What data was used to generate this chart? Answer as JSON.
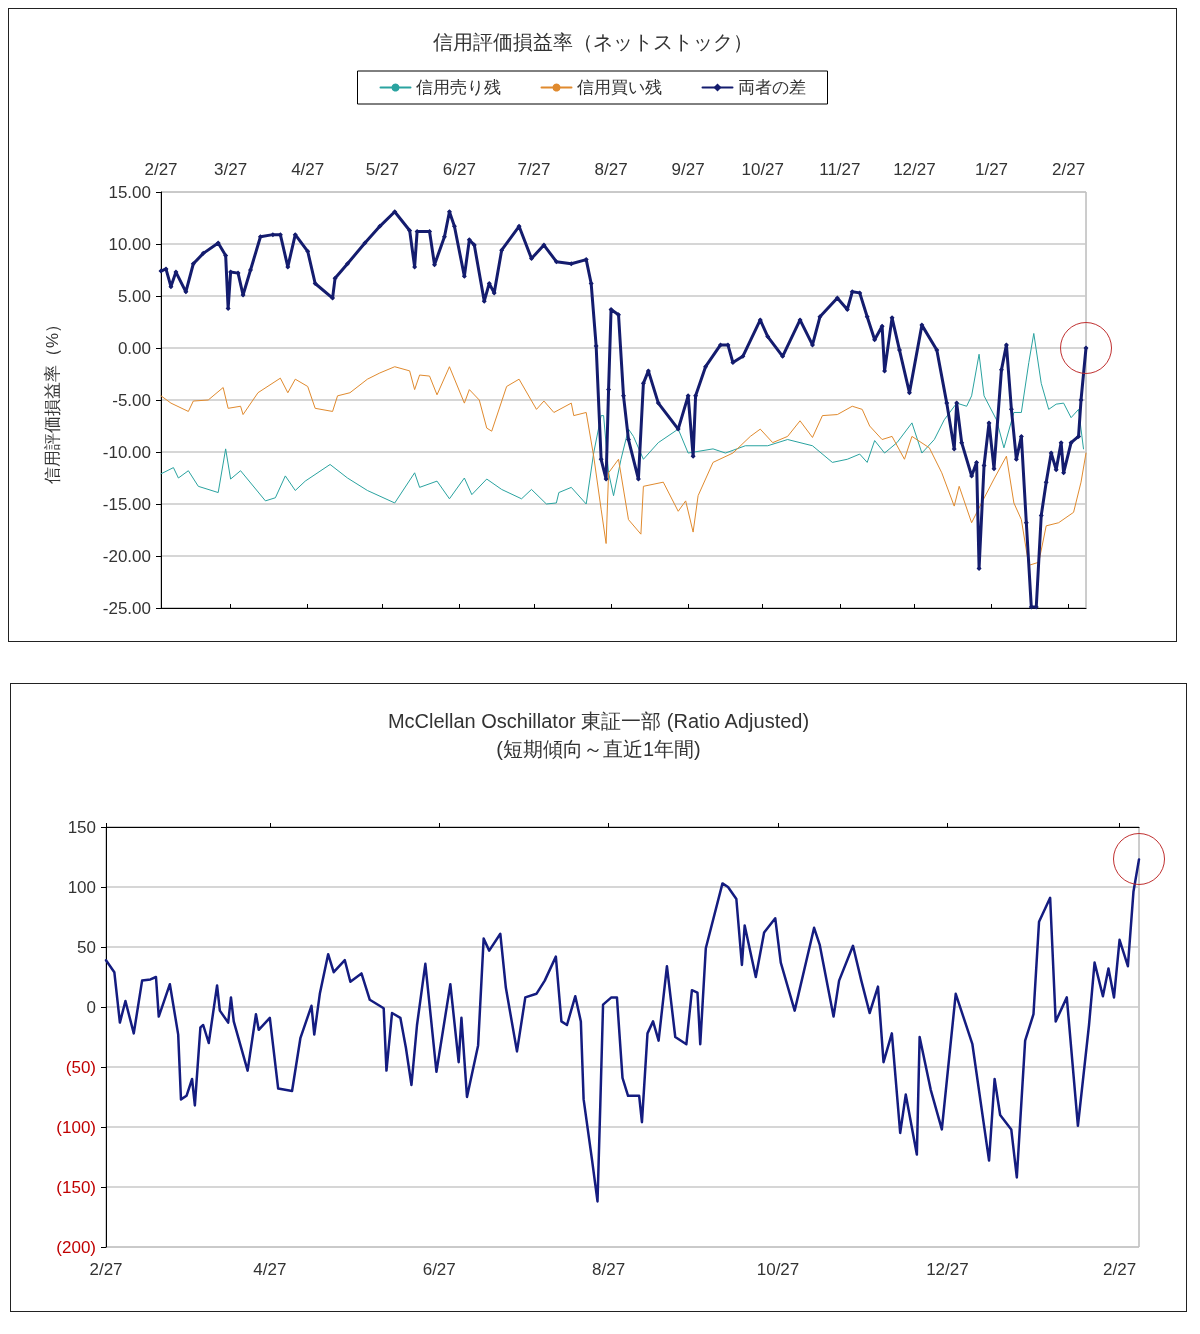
{
  "chart_data": [
    {
      "type": "line",
      "title": "信用評価損益率（ネットストック）",
      "ylabel": "信用評価損益率（%）",
      "ylim": [
        -25,
        15
      ],
      "categories": [
        "2/27",
        null,
        null,
        null,
        null,
        null,
        null,
        null,
        null,
        null,
        null,
        null,
        null,
        null,
        null,
        null,
        null,
        null,
        null,
        null,
        null,
        null,
        null,
        null,
        null,
        null,
        null,
        null,
        "3/27",
        null,
        null,
        null,
        null,
        null,
        null,
        null,
        null,
        null,
        null,
        null,
        null,
        null,
        null,
        null,
        null,
        null,
        null,
        null,
        null,
        null,
        null,
        null,
        null,
        null,
        null,
        null,
        null,
        null,
        null,
        "4/27",
        null,
        null,
        null,
        null,
        null,
        null,
        null,
        null,
        null,
        null,
        null,
        null,
        null,
        null,
        null,
        null,
        null,
        null,
        null,
        null,
        null,
        null,
        null,
        null,
        null,
        null,
        null,
        null,
        null,
        "5/27",
        null,
        null,
        null,
        null,
        null,
        null,
        null,
        null,
        null,
        null,
        null,
        null,
        null,
        null,
        null,
        null,
        null,
        null,
        null,
        null,
        null,
        null,
        null,
        null,
        null,
        null,
        null,
        null,
        null,
        null,
        "6/27",
        null,
        null,
        null,
        null,
        null,
        null,
        null,
        null,
        null,
        null,
        null,
        null,
        null,
        null,
        null,
        null,
        null,
        null,
        null,
        null,
        null,
        null,
        null,
        null,
        null,
        null,
        null,
        null,
        null,
        "7/27",
        null,
        null,
        null,
        null,
        null,
        null,
        null,
        null,
        null,
        null,
        null,
        null,
        null,
        null,
        null,
        null,
        null,
        null,
        null,
        null,
        null,
        null,
        null,
        null,
        null,
        null,
        null,
        null,
        null,
        null,
        "8/27",
        null,
        null,
        null,
        null,
        null,
        null,
        null,
        null,
        null,
        null,
        null,
        null,
        null,
        null,
        null,
        null,
        null,
        null,
        null,
        null,
        null,
        null,
        null,
        null,
        null,
        null,
        null,
        null,
        null,
        null,
        "9/27",
        null,
        null,
        null,
        null,
        null,
        null,
        null,
        null,
        null,
        null,
        null,
        null,
        null,
        null,
        null,
        null,
        null,
        null,
        null,
        null,
        null,
        null,
        null,
        null,
        null,
        null,
        null,
        null,
        null,
        "10/27",
        null,
        null,
        null,
        null,
        null,
        null,
        null,
        null,
        null,
        null,
        null,
        null,
        null,
        null,
        null,
        null,
        null,
        null,
        null,
        null,
        null,
        null,
        null,
        null,
        null,
        null,
        null,
        null,
        null,
        null,
        "11/27",
        null,
        null,
        null,
        null,
        null,
        null,
        null,
        null,
        null,
        null,
        null,
        null,
        null,
        null,
        null,
        null,
        null,
        null,
        null,
        null,
        null,
        null,
        null,
        null,
        null,
        null,
        null,
        null,
        null,
        "12/27",
        null,
        null,
        null,
        null,
        null,
        null,
        null,
        null,
        null,
        null,
        null,
        null,
        null,
        null,
        null,
        null,
        null,
        null,
        null,
        null,
        null,
        null,
        null,
        null,
        null,
        null,
        null,
        null,
        null,
        null,
        "1/27",
        null,
        null,
        null,
        null,
        null,
        null,
        null,
        null,
        null,
        null,
        null,
        null,
        null,
        null,
        null,
        null,
        null,
        null,
        null,
        null,
        null,
        null,
        null,
        null,
        null,
        null,
        null,
        null,
        null,
        null,
        "2/27",
        null,
        null,
        null,
        null,
        null,
        null,
        null
      ],
      "yticks": [
        {
          "value": -25,
          "label": "-25.00"
        },
        {
          "value": -20,
          "label": "-20.00"
        },
        {
          "value": -15,
          "label": "-15.00"
        },
        {
          "value": -10,
          "label": "-10.00"
        },
        {
          "value": -5,
          "label": "-5.00"
        },
        {
          "value": 0,
          "label": "0.00"
        },
        {
          "value": 5,
          "label": "5.00"
        },
        {
          "value": 10,
          "label": "10.00"
        },
        {
          "value": 15,
          "label": "15.00"
        }
      ],
      "grid": "y",
      "legend": "top",
      "series": [
        {
          "name": "信用売り残",
          "color": "#2aa3a0",
          "values": [
            -12.1,
            null,
            null,
            null,
            null,
            -11.5,
            null,
            -12.5,
            null,
            null,
            null,
            -11.8,
            null,
            null,
            null,
            -13.3,
            null,
            null,
            null,
            null,
            null,
            null,
            null,
            -13.9,
            null,
            null,
            -9.7,
            null,
            -12.6,
            null,
            null,
            null,
            -11.8,
            null,
            null,
            null,
            null,
            null,
            null,
            null,
            null,
            null,
            -14.7,
            null,
            null,
            null,
            -14.4,
            null,
            null,
            null,
            -12.3,
            null,
            null,
            null,
            -13.7,
            null,
            null,
            null,
            -12.8,
            null,
            null,
            null,
            null,
            null,
            null,
            null,
            null,
            null,
            -11.2,
            null,
            null,
            null,
            null,
            null,
            null,
            -12.5,
            null,
            null,
            null,
            null,
            null,
            null,
            null,
            -13.7,
            null,
            null,
            null,
            null,
            null,
            null,
            null,
            null,
            null,
            null,
            -14.9,
            null,
            null,
            null,
            null,
            null,
            null,
            null,
            -12.0,
            null,
            -13.4,
            null,
            null,
            null,
            null,
            null,
            null,
            -12.8,
            null,
            null,
            null,
            null,
            -14.5,
            null,
            null,
            null,
            null,
            null,
            -12.5,
            null,
            null,
            -14.1,
            null,
            null,
            null,
            null,
            null,
            -12.6,
            null,
            null,
            null,
            null,
            null,
            -13.6,
            null,
            null,
            null,
            null,
            null,
            null,
            null,
            -14.5,
            null,
            null,
            null,
            -13.6,
            null,
            null,
            null,
            null,
            null,
            -15.0,
            null,
            null,
            null,
            -14.9,
            -13.9,
            null,
            null,
            null,
            null,
            -13.4,
            null,
            null,
            null,
            null,
            null,
            -15.0,
            null,
            null,
            -10.1,
            null,
            null,
            -6.5,
            -6.5,
            null,
            -12.0,
            null,
            -14.2,
            null,
            null,
            -10.7,
            null,
            null,
            -7.8,
            null,
            -8.5,
            null,
            null,
            null,
            -10.7,
            null,
            null,
            null,
            null,
            null,
            -9.1,
            null,
            null,
            null,
            null,
            null,
            null,
            null,
            -7.8,
            null,
            null,
            null,
            -10.1,
            null,
            null,
            null,
            null,
            null,
            null,
            null,
            null,
            null,
            -9.7,
            null,
            null,
            null,
            null,
            -10.1,
            null,
            null,
            null,
            null,
            null,
            null,
            null,
            -9.4,
            null,
            null,
            null,
            null,
            null,
            null,
            null,
            null,
            -9.4,
            null,
            null,
            null,
            null,
            null,
            null,
            null,
            -8.8,
            null,
            null,
            null,
            null,
            null,
            null,
            null,
            null,
            null,
            -9.4,
            null,
            null,
            null,
            null,
            null,
            null,
            null,
            -11.0,
            null,
            null,
            null,
            null,
            null,
            -10.7,
            null,
            null,
            null,
            null,
            -10.2,
            null,
            null,
            -11.0,
            null,
            null,
            -8.9,
            null,
            null,
            null,
            -10.1,
            null,
            null,
            null,
            null,
            -9.1,
            null,
            null,
            null,
            null,
            null,
            -7.2,
            null,
            null,
            null,
            -10.1,
            null,
            null,
            null,
            null,
            -8.8,
            null,
            null,
            null,
            -6.9,
            null,
            null,
            null,
            null,
            -5.3,
            null,
            null,
            null,
            -5.6,
            null,
            -4.6,
            null,
            null,
            -0.6,
            null,
            -4.6,
            null,
            null,
            null,
            null,
            -6.9,
            null,
            null,
            -9.6,
            null,
            null,
            null,
            -6.2,
            null,
            null,
            -6.2,
            null,
            null,
            -1.4,
            null,
            1.4,
            null,
            null,
            -3.4,
            null,
            null,
            -5.9,
            null,
            null,
            -5.4,
            null,
            null,
            -5.3,
            null,
            null,
            -6.7,
            null,
            null,
            -5.9,
            null,
            -9.7,
            null
          ]
        },
        {
          "name": "信用買い残",
          "color": "#e08a2e",
          "values": [
            -4.6,
            null,
            null,
            null,
            -5.3,
            null,
            null,
            null,
            null,
            null,
            null,
            -6.1,
            null,
            -5.1,
            null,
            null,
            null,
            null,
            null,
            -5.0,
            null,
            null,
            null,
            null,
            null,
            -3.8,
            null,
            -5.8,
            null,
            null,
            null,
            null,
            -5.6,
            -6.4,
            null,
            null,
            null,
            null,
            null,
            -4.3,
            null,
            null,
            null,
            null,
            null,
            null,
            null,
            null,
            -2.9,
            null,
            null,
            -4.3,
            null,
            null,
            -3.0,
            null,
            null,
            null,
            null,
            -3.7,
            null,
            null,
            -5.8,
            null,
            null,
            null,
            null,
            null,
            null,
            -6.1,
            null,
            -4.6,
            null,
            null,
            null,
            null,
            -4.3,
            null,
            null,
            null,
            null,
            null,
            null,
            -3.0,
            null,
            null,
            null,
            null,
            -2.4,
            null,
            null,
            null,
            null,
            null,
            -1.8,
            null,
            null,
            null,
            null,
            null,
            -2.2,
            null,
            -4.0,
            null,
            -2.6,
            null,
            null,
            null,
            -2.7,
            null,
            null,
            -4.5,
            null,
            null,
            null,
            null,
            -1.8,
            null,
            null,
            null,
            null,
            null,
            -5.3,
            null,
            -4.0,
            null,
            null,
            null,
            -5.0,
            null,
            null,
            -7.7,
            null,
            -8.0,
            null,
            null,
            null,
            null,
            null,
            -3.7,
            null,
            null,
            null,
            null,
            -3.0,
            null,
            null,
            null,
            null,
            null,
            null,
            -5.9,
            null,
            null,
            -5.1,
            null,
            null,
            null,
            -6.2,
            null,
            null,
            null,
            null,
            null,
            null,
            -5.3,
            -6.5,
            null,
            null,
            null,
            null,
            -6.2,
            null,
            null,
            -10.4,
            null,
            null,
            -15.5,
            null,
            -18.8,
            -12.0,
            null,
            null,
            null,
            -10.7,
            null,
            null,
            null,
            -16.5,
            null,
            null,
            null,
            null,
            -17.9,
            -13.3,
            null,
            null,
            null,
            null,
            null,
            null,
            null,
            -12.9,
            null,
            null,
            null,
            null,
            null,
            -15.7,
            null,
            null,
            -14.7,
            null,
            null,
            -17.7,
            null,
            -14.2,
            null,
            null,
            null,
            null,
            null,
            -11.0,
            null,
            null,
            null,
            null,
            null,
            null,
            null,
            -10.1,
            null,
            null,
            null,
            null,
            null,
            null,
            -8.5,
            null,
            null,
            null,
            -7.8,
            null,
            null,
            null,
            null,
            -9.1,
            null,
            null,
            null,
            null,
            null,
            -8.5,
            null,
            null,
            null,
            null,
            -7.0,
            null,
            null,
            null,
            null,
            -8.6,
            null,
            null,
            null,
            -6.5,
            null,
            null,
            null,
            null,
            null,
            -6.4,
            null,
            null,
            null,
            null,
            null,
            -5.6,
            null,
            null,
            null,
            -5.9,
            null,
            null,
            -7.5,
            null,
            null,
            null,
            null,
            -8.8,
            null,
            null,
            null,
            -8.5,
            null,
            null,
            null,
            null,
            -10.7,
            null,
            null,
            -8.5,
            null,
            null,
            null,
            null,
            null,
            null,
            -9.6,
            null,
            null,
            null,
            null,
            -12.0,
            null,
            null,
            null,
            null,
            -15.2,
            null,
            -13.3,
            null,
            null,
            null,
            null,
            -16.8,
            null,
            null,
            null,
            -14.9,
            null,
            null,
            null,
            null,
            -12.6,
            null,
            null,
            null,
            null,
            -10.4,
            null,
            null,
            -14.9,
            null,
            null,
            -16.5,
            null,
            null,
            -20.9,
            null,
            null,
            null,
            -20.6,
            null,
            null,
            -17.1,
            null,
            null,
            null,
            null,
            -16.8,
            null,
            null,
            null,
            null,
            null,
            -15.8,
            null,
            null,
            -12.9,
            null,
            -10.1
          ]
        },
        {
          "name": "両者の差",
          "color": "#141c6e",
          "marker": "diamond",
          "values": [
            7.4,
            null,
            7.6,
            null,
            5.9,
            null,
            7.3,
            null,
            null,
            null,
            5.4,
            null,
            null,
            8.1,
            null,
            null,
            null,
            9.1,
            null,
            null,
            null,
            null,
            null,
            10.1,
            null,
            null,
            8.9,
            3.8,
            7.3,
            null,
            null,
            7.2,
            null,
            5.1,
            null,
            null,
            7.5,
            null,
            null,
            null,
            10.7,
            null,
            null,
            null,
            null,
            10.9,
            null,
            null,
            10.9,
            null,
            null,
            7.8,
            null,
            null,
            10.9,
            null,
            null,
            null,
            null,
            9.3,
            null,
            null,
            6.2,
            null,
            null,
            null,
            null,
            null,
            null,
            4.8,
            6.7,
            null,
            null,
            null,
            null,
            8.1,
            null,
            null,
            null,
            null,
            null,
            null,
            10.1,
            null,
            null,
            null,
            null,
            null,
            11.7,
            null,
            null,
            null,
            null,
            null,
            13.1,
            null,
            null,
            null,
            null,
            null,
            11.3,
            null,
            7.8,
            11.2,
            null,
            null,
            null,
            null,
            11.2,
            null,
            8.0,
            null,
            null,
            null,
            10.7,
            null,
            13.1,
            null,
            11.7,
            null,
            null,
            null,
            6.9,
            null,
            10.4,
            null,
            9.9,
            null,
            null,
            null,
            4.5,
            null,
            6.2,
            null,
            5.3,
            null,
            null,
            9.4,
            null,
            null,
            null,
            null,
            null,
            null,
            11.7,
            null,
            null,
            null,
            null,
            8.6,
            null,
            null,
            null,
            null,
            9.9,
            null,
            null,
            null,
            null,
            8.3,
            null,
            null,
            null,
            null,
            null,
            8.1,
            null,
            null,
            null,
            null,
            null,
            8.5,
            null,
            6.2,
            null,
            0.2,
            null,
            -10.7,
            null,
            -12.6,
            -4.0,
            3.7,
            null,
            null,
            3.2,
            null,
            -4.6,
            null,
            -8.8,
            null,
            null,
            null,
            -12.6,
            null,
            -3.4,
            null,
            -2.2,
            null,
            null,
            null,
            -5.3,
            null,
            null,
            null,
            null,
            null,
            null,
            null,
            -7.8,
            null,
            null,
            null,
            -4.6,
            null,
            -10.4,
            -4.6,
            null,
            null,
            null,
            -1.8,
            null,
            null,
            null,
            null,
            null,
            0.3,
            null,
            null,
            0.3,
            null,
            -1.4,
            null,
            null,
            null,
            -0.8,
            null,
            null,
            null,
            null,
            null,
            null,
            2.7,
            null,
            null,
            1.1,
            null,
            null,
            null,
            null,
            null,
            -0.8,
            null,
            null,
            null,
            null,
            null,
            null,
            2.7,
            null,
            null,
            null,
            null,
            0.3,
            null,
            null,
            3.0,
            null,
            null,
            null,
            null,
            null,
            null,
            4.8,
            null,
            null,
            null,
            3.7,
            null,
            5.4,
            null,
            null,
            5.3,
            null,
            null,
            3.0,
            null,
            null,
            0.8,
            null,
            null,
            2.1,
            -2.2,
            null,
            null,
            2.9,
            null,
            null,
            -0.2,
            null,
            null,
            null,
            -4.3,
            null,
            null,
            null,
            null,
            2.2,
            null,
            null,
            null,
            null,
            null,
            -0.2,
            null,
            null,
            null,
            -5.3,
            null,
            null,
            -9.7,
            -5.3,
            null,
            -9.1,
            null,
            null,
            null,
            -12.3,
            null,
            -11.0,
            -21.2,
            null,
            -11.3,
            null,
            -7.2,
            null,
            -11.6,
            null,
            null,
            -2.1,
            null,
            0.3,
            null,
            -5.9,
            null,
            -10.7,
            null,
            -8.5,
            null,
            -16.8,
            null,
            -24.9,
            null,
            -24.9,
            null,
            -16.1,
            null,
            -12.9,
            null,
            -10.1,
            null,
            -11.7,
            null,
            -9.1,
            -12.0,
            null,
            null,
            -9.1,
            null,
            null,
            -8.5,
            -5.0,
            null,
            0.0
          ]
        }
      ]
    },
    {
      "type": "line",
      "title": "McClellan Oschillator 東証一部 (Ratio Adjusted)",
      "subtitle": "(短期傾向～直近1年間)",
      "ylim": [
        -200,
        150
      ],
      "categories": [
        "2/27",
        null,
        null,
        null,
        null,
        null,
        null,
        null,
        null,
        null,
        null,
        null,
        null,
        null,
        null,
        null,
        null,
        null,
        null,
        null,
        null,
        null,
        null,
        null,
        null,
        null,
        null,
        null,
        null,
        null,
        null,
        null,
        null,
        null,
        null,
        null,
        null,
        null,
        null,
        null,
        null,
        null,
        null,
        null,
        null,
        null,
        null,
        null,
        null,
        null,
        null,
        null,
        null,
        null,
        null,
        null,
        null,
        null,
        null,
        "4/27",
        null,
        null,
        null,
        null,
        null,
        null,
        null,
        null,
        null,
        null,
        null,
        null,
        null,
        null,
        null,
        null,
        null,
        null,
        null,
        null,
        null,
        null,
        null,
        null,
        null,
        null,
        null,
        null,
        null,
        null,
        null,
        null,
        null,
        null,
        null,
        null,
        null,
        null,
        null,
        null,
        null,
        null,
        null,
        null,
        null,
        null,
        null,
        null,
        null,
        null,
        null,
        null,
        null,
        null,
        null,
        null,
        null,
        null,
        null,
        null,
        "6/27",
        null,
        null,
        null,
        null,
        null,
        null,
        null,
        null,
        null,
        null,
        null,
        null,
        null,
        null,
        null,
        null,
        null,
        null,
        null,
        null,
        null,
        null,
        null,
        null,
        null,
        null,
        null,
        null,
        null,
        null,
        null,
        null,
        null,
        null,
        null,
        null,
        null,
        null,
        null,
        null,
        null,
        null,
        null,
        null,
        null,
        null,
        null,
        null,
        null,
        null,
        null,
        null,
        null,
        null,
        null,
        null,
        null,
        null,
        null,
        null,
        "8/27",
        null,
        null,
        null,
        null,
        null,
        null,
        null,
        null,
        null,
        null,
        null,
        null,
        null,
        null,
        null,
        null,
        null,
        null,
        null,
        null,
        null,
        null,
        null,
        null,
        null,
        null,
        null,
        null,
        null,
        null,
        null,
        null,
        null,
        null,
        null,
        null,
        null,
        null,
        null,
        null,
        null,
        null,
        null,
        null,
        null,
        null,
        null,
        null,
        null,
        null,
        null,
        null,
        null,
        null,
        null,
        null,
        null,
        null,
        null,
        null,
        "10/27",
        null,
        null,
        null,
        null,
        null,
        null,
        null,
        null,
        null,
        null,
        null,
        null,
        null,
        null,
        null,
        null,
        null,
        null,
        null,
        null,
        null,
        null,
        null,
        null,
        null,
        null,
        null,
        null,
        null,
        null,
        null,
        null,
        null,
        null,
        null,
        null,
        null,
        null,
        null,
        null,
        null,
        null,
        null,
        null,
        null,
        null,
        null,
        null,
        null,
        null,
        null,
        null,
        null,
        null,
        null,
        null,
        null,
        null,
        null,
        null,
        "12/27",
        null,
        null,
        null,
        null,
        null,
        null,
        null,
        null,
        null,
        null,
        null,
        null,
        null,
        null,
        null,
        null,
        null,
        null,
        null,
        null,
        null,
        null,
        null,
        null,
        null,
        null,
        null,
        null,
        null,
        null,
        null,
        null,
        null,
        null,
        null,
        null,
        null,
        null,
        null,
        null,
        null,
        null,
        null,
        null,
        null,
        null,
        null,
        null,
        null,
        null,
        null,
        null,
        null,
        null,
        null,
        null,
        null,
        null,
        null,
        null,
        null,
        "2/27",
        null,
        null,
        null,
        null,
        null,
        null,
        null
      ],
      "yticks": [
        {
          "value": -200,
          "label": "(200)"
        },
        {
          "value": -150,
          "label": "(150)"
        },
        {
          "value": -100,
          "label": "(100)"
        },
        {
          "value": -50,
          "label": "(50)"
        },
        0,
        50,
        100,
        150
      ],
      "grid": "y",
      "legend": false,
      "series": [
        {
          "color": "#141c80",
          "values": [
            39,
            null,
            null,
            29,
            null,
            -13,
            null,
            5,
            null,
            null,
            -22,
            null,
            null,
            22,
            null,
            null,
            23,
            null,
            25,
            -8,
            null,
            null,
            null,
            19,
            null,
            null,
            -23,
            -77,
            null,
            -74,
            null,
            -60,
            -82,
            null,
            -17,
            -15,
            null,
            -30,
            null,
            null,
            18,
            -3,
            null,
            null,
            -13,
            8,
            -12,
            null,
            null,
            null,
            null,
            -53,
            null,
            null,
            -6,
            -19,
            null,
            null,
            null,
            -9,
            null,
            null,
            -68,
            null,
            null,
            null,
            null,
            -70,
            null,
            null,
            -26,
            null,
            null,
            null,
            1,
            -23,
            null,
            11,
            null,
            null,
            44,
            null,
            29,
            null,
            null,
            null,
            39,
            null,
            21,
            null,
            null,
            null,
            28,
            null,
            null,
            6,
            null,
            null,
            null,
            null,
            -1,
            -53,
            null,
            -5,
            null,
            null,
            -9,
            null,
            -34,
            null,
            -65,
            null,
            -15,
            null,
            19,
            36,
            null,
            null,
            null,
            -54,
            null,
            null,
            null,
            null,
            19,
            null,
            null,
            -46,
            -9,
            null,
            -75,
            null,
            null,
            null,
            -32,
            null,
            57,
            null,
            47,
            null,
            null,
            null,
            61,
            null,
            16,
            null,
            null,
            null,
            -37,
            null,
            null,
            8,
            null,
            null,
            null,
            11,
            null,
            null,
            22,
            null,
            null,
            null,
            42,
            null,
            -12,
            null,
            -15,
            null,
            null,
            9,
            null,
            -12,
            -77,
            null,
            null,
            -127,
            null,
            -162,
            -82,
            2,
            null,
            null,
            8,
            null,
            8,
            null,
            -59,
            null,
            -74,
            null,
            null,
            null,
            -74,
            -96,
            null,
            -22,
            null,
            -12,
            null,
            -28,
            null,
            null,
            34,
            null,
            null,
            -25,
            null,
            null,
            null,
            -31,
            null,
            14,
            null,
            12,
            -31,
            null,
            49,
            null,
            null,
            null,
            null,
            null,
            103,
            null,
            100,
            null,
            null,
            90,
            null,
            35,
            68,
            null,
            null,
            null,
            25,
            null,
            null,
            62,
            null,
            null,
            null,
            74,
            null,
            37,
            null,
            null,
            null,
            null,
            -3,
            null,
            null,
            null,
            null,
            null,
            null,
            66,
            null,
            52,
            null,
            null,
            null,
            null,
            -8,
            null,
            22,
            null,
            null,
            null,
            null,
            51,
            null,
            null,
            22,
            null,
            null,
            -5,
            null,
            null,
            17,
            null,
            -46,
            null,
            null,
            -22,
            null,
            null,
            -105,
            null,
            -73,
            null,
            null,
            null,
            -123,
            -25,
            null,
            null,
            null,
            -69,
            null,
            null,
            null,
            -102,
            null,
            null,
            null,
            null,
            11,
            null,
            null,
            null,
            null,
            null,
            -31,
            null,
            null,
            null,
            null,
            null,
            -128,
            null,
            -60,
            null,
            -90,
            null,
            null,
            null,
            -102,
            null,
            -142,
            null,
            null,
            -28,
            null,
            null,
            -6,
            null,
            71,
            null,
            null,
            null,
            91,
            null,
            -12,
            null,
            null,
            null,
            8,
            null,
            null,
            null,
            -99,
            null,
            null,
            null,
            -15,
            null,
            37,
            null,
            null,
            9,
            null,
            32,
            null,
            8,
            null,
            56,
            null,
            null,
            34,
            null,
            96,
            null,
            123
          ]
        }
      ]
    }
  ]
}
